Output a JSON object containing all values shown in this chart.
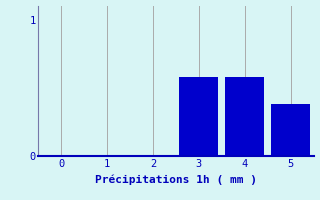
{
  "categories": [
    0,
    1,
    2,
    3,
    4,
    5
  ],
  "values": [
    0,
    0,
    0,
    0.58,
    0.58,
    0.38
  ],
  "bar_color": "#0000cc",
  "background_color": "#d8f5f5",
  "xlabel": "Précipitations 1h ( mm )",
  "ylim": [
    0,
    1.1
  ],
  "xlim": [
    -0.5,
    5.5
  ],
  "yticks": [
    0,
    1
  ],
  "xticks": [
    0,
    1,
    2,
    3,
    4,
    5
  ],
  "grid_color": "#aaaaaa",
  "axis_color": "#7777aa",
  "xlabel_color": "#0000bb",
  "tick_color": "#0000bb",
  "bar_width": 0.85,
  "xlabel_fontsize": 8,
  "tick_fontsize": 7.5
}
